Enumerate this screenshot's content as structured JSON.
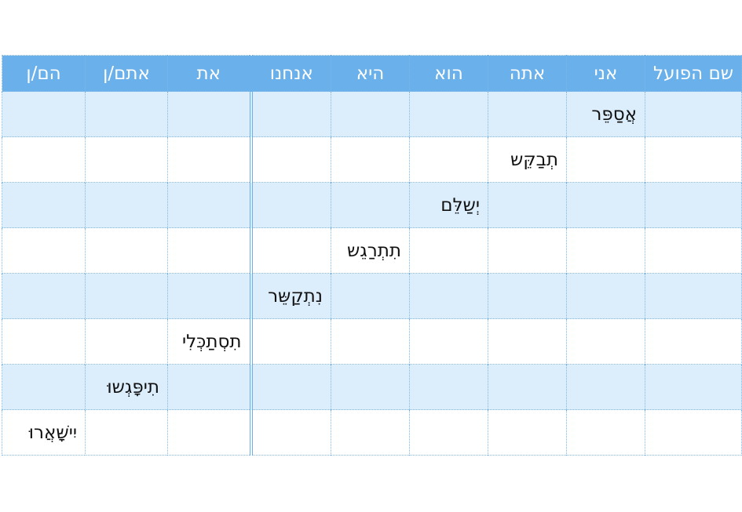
{
  "headers": [
    "שם הפועל",
    "אני",
    "אתה",
    "הוא",
    "היא",
    "אנחנו",
    "את",
    "אתם/ן",
    "הם/ן"
  ],
  "rows": [
    [
      "",
      "אֲסַפֵּר",
      "",
      "",
      "",
      "",
      "",
      "",
      ""
    ],
    [
      "",
      "",
      "תְבַקֵּש",
      "",
      "",
      "",
      "",
      "",
      ""
    ],
    [
      "",
      "",
      "",
      "יְשַלֵּם",
      "",
      "",
      "",
      "",
      ""
    ],
    [
      "",
      "",
      "",
      "",
      "תִתְרַגֵש",
      "",
      "",
      "",
      ""
    ],
    [
      "",
      "",
      "",
      "",
      "",
      "נִתְקַשֵּר",
      "",
      "",
      ""
    ],
    [
      "",
      "",
      "",
      "",
      "",
      "",
      "תִסְתַכְּלִי",
      "",
      ""
    ],
    [
      "",
      "",
      "",
      "",
      "",
      "",
      "",
      "תִיפָּגְשוּ",
      ""
    ],
    [
      "",
      "",
      "",
      "",
      "",
      "",
      "",
      "",
      "יִישָּׁאֲרוּ"
    ]
  ]
}
